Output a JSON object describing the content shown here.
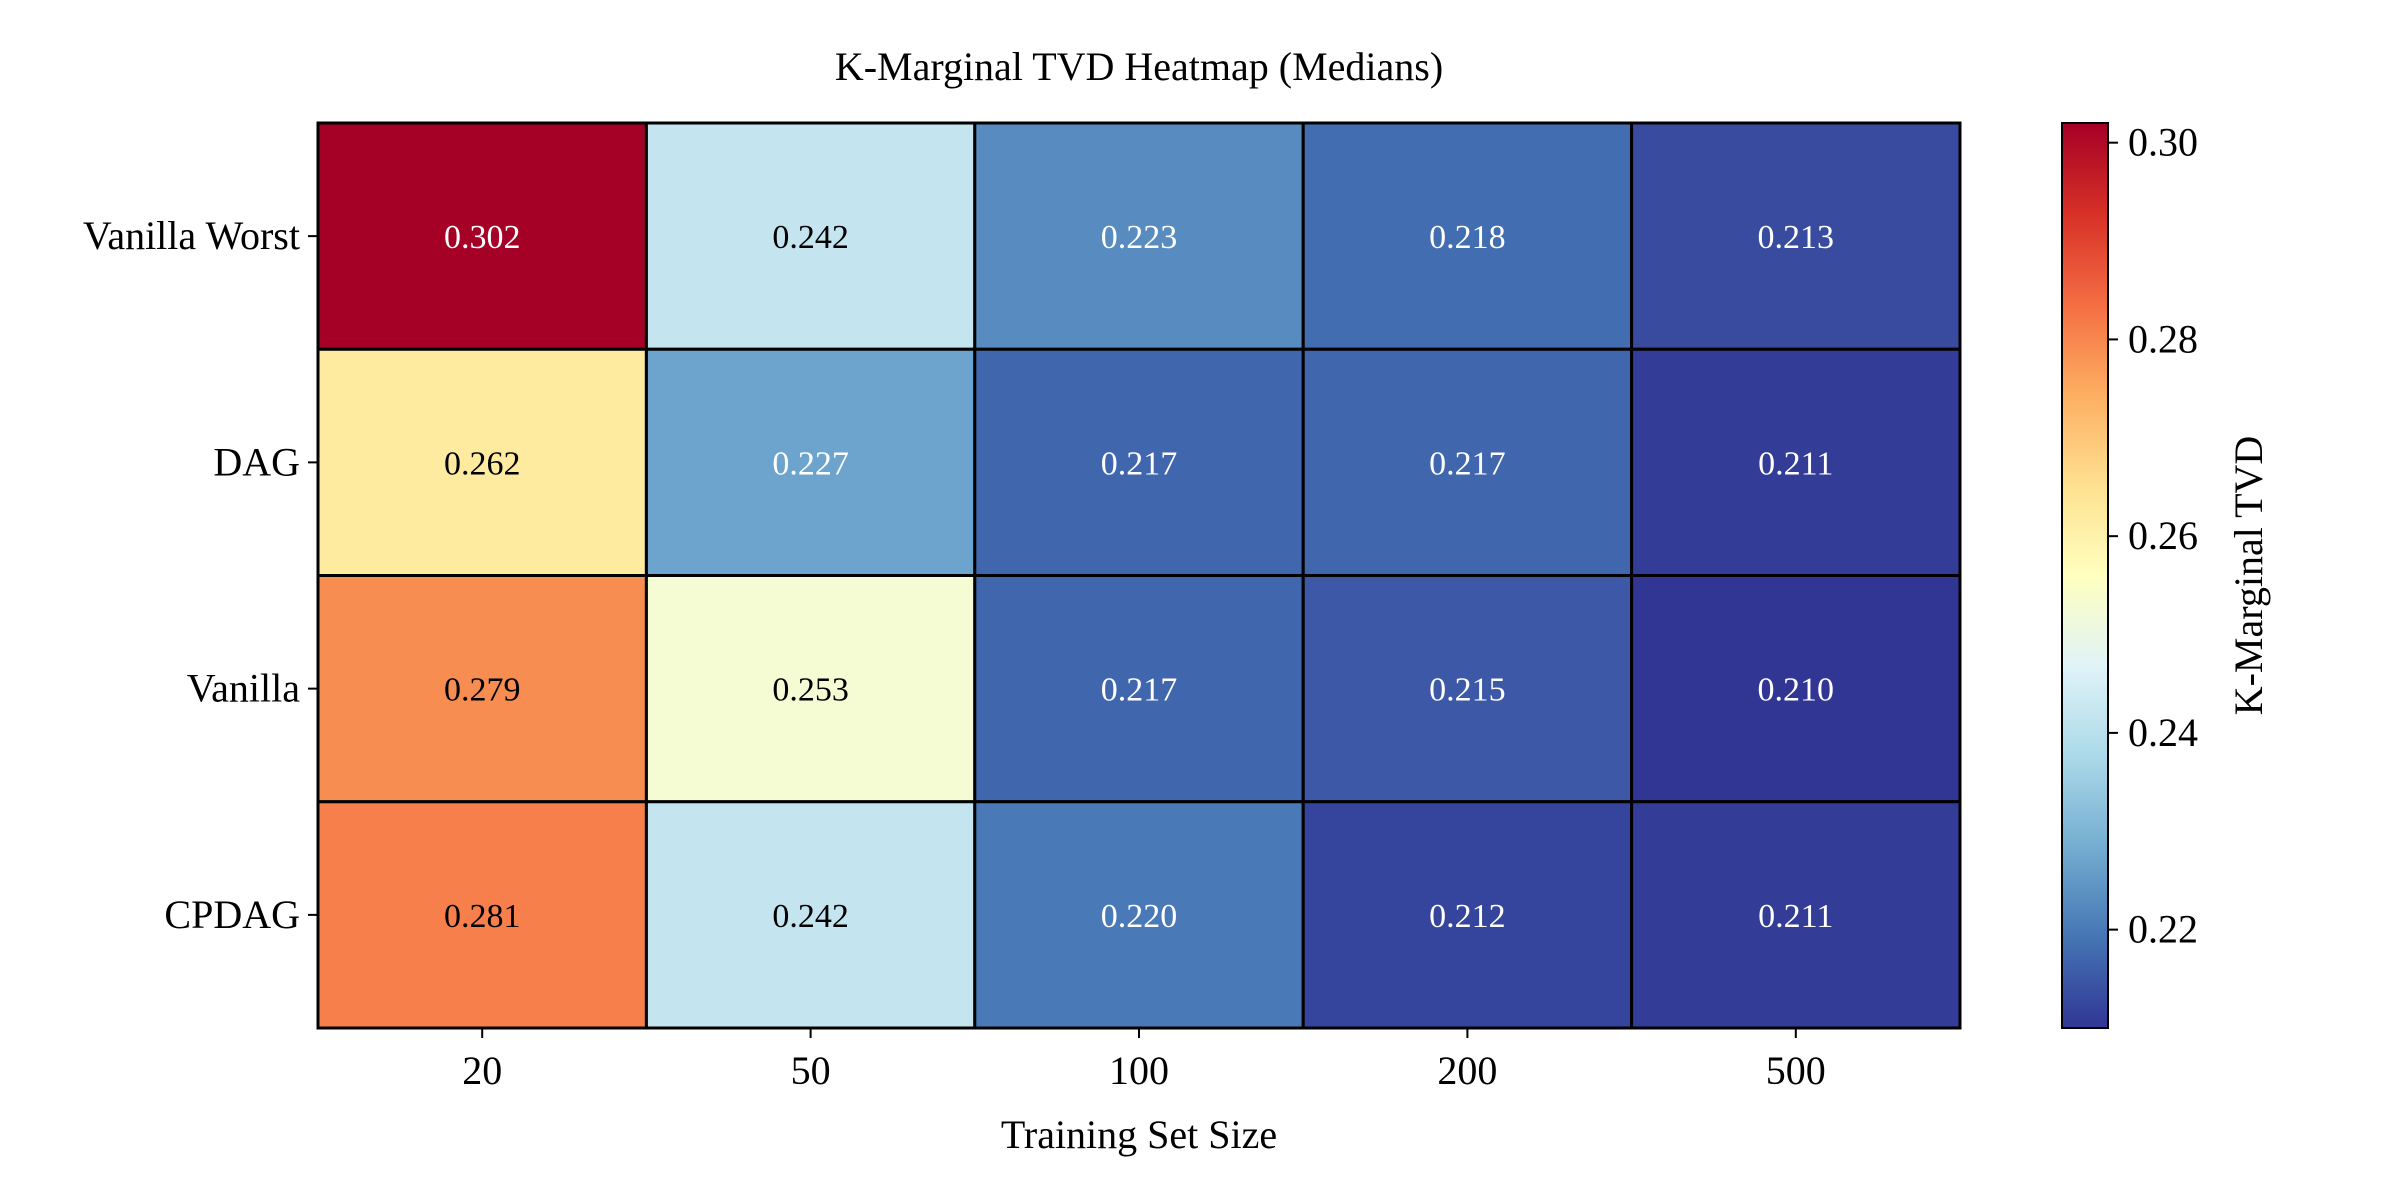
{
  "chart_data": {
    "type": "heatmap",
    "title": "K-Marginal TVD Heatmap (Medians)",
    "xlabel": "Training Set Size",
    "ylabel": "",
    "x_categories": [
      "20",
      "50",
      "100",
      "200",
      "500"
    ],
    "y_categories": [
      "Vanilla Worst",
      "DAG",
      "Vanilla",
      "CPDAG"
    ],
    "values": [
      [
        0.302,
        0.242,
        0.223,
        0.218,
        0.213
      ],
      [
        0.262,
        0.227,
        0.217,
        0.217,
        0.211
      ],
      [
        0.279,
        0.253,
        0.217,
        0.215,
        0.21
      ],
      [
        0.281,
        0.242,
        0.22,
        0.212,
        0.211
      ]
    ],
    "value_labels": [
      [
        "0.302",
        "0.242",
        "0.223",
        "0.218",
        "0.213"
      ],
      [
        "0.262",
        "0.227",
        "0.217",
        "0.217",
        "0.211"
      ],
      [
        "0.279",
        "0.253",
        "0.217",
        "0.215",
        "0.210"
      ],
      [
        "0.281",
        "0.242",
        "0.220",
        "0.212",
        "0.211"
      ]
    ],
    "colormap": "RdYlBu_r",
    "color_range": [
      0.21,
      0.302
    ],
    "colorbar": {
      "label": "K-Marginal TVD",
      "ticks": [
        0.22,
        0.24,
        0.26,
        0.28,
        0.3
      ],
      "tick_labels": [
        "0.22",
        "0.24",
        "0.26",
        "0.28",
        "0.30"
      ]
    },
    "grid": false
  }
}
